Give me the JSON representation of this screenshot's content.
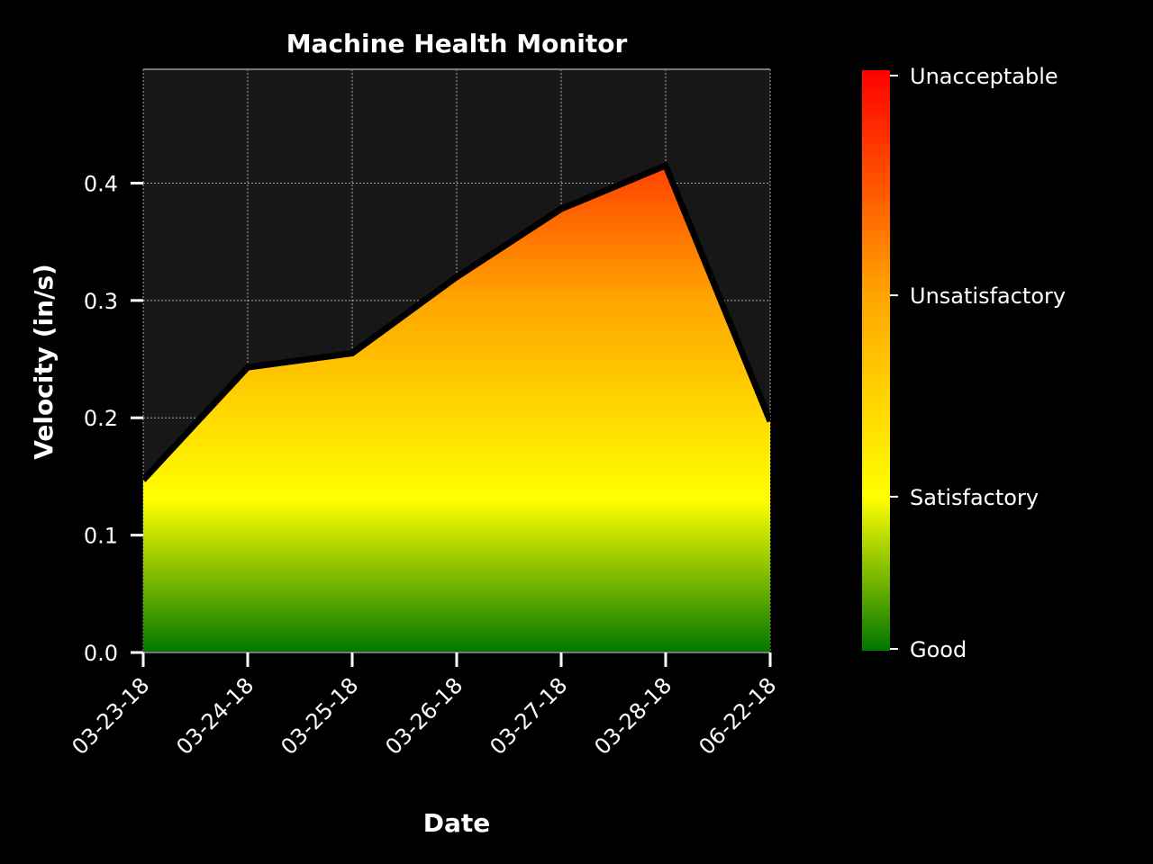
{
  "colors": {
    "background": "#000000",
    "plot_background": "#171717",
    "text": "#ffffff",
    "grid": "#d9d9d9",
    "line": "#000000",
    "frame": "#777777"
  },
  "chart_data": {
    "type": "area",
    "title": "Machine Health Monitor",
    "xlabel": "Date",
    "ylabel": "Velocity (in/s)",
    "categories": [
      "03-23-18",
      "03-24-18",
      "03-25-18",
      "03-26-18",
      "03-27-18",
      "03-28-18",
      "06-22-18"
    ],
    "series": [
      {
        "name": "Velocity",
        "values": [
          0.147,
          0.243,
          0.255,
          0.32,
          0.378,
          0.415,
          0.197
        ]
      }
    ],
    "ylim": [
      0.0,
      0.497
    ],
    "yticks": [
      0.0,
      0.1,
      0.2,
      0.3,
      0.4
    ],
    "ytick_labels": [
      "0.0",
      "0.1",
      "0.2",
      "0.3",
      "0.4"
    ],
    "grid": true,
    "colorbar": {
      "labels": [
        "Good",
        "Satisfactory",
        "Unsatisfactory",
        "Unacceptable"
      ],
      "colors": [
        "#007700",
        "#ffff00",
        "#ffa500",
        "#ff0000"
      ],
      "stops": [
        0.0,
        0.13,
        0.3,
        0.49
      ]
    }
  }
}
